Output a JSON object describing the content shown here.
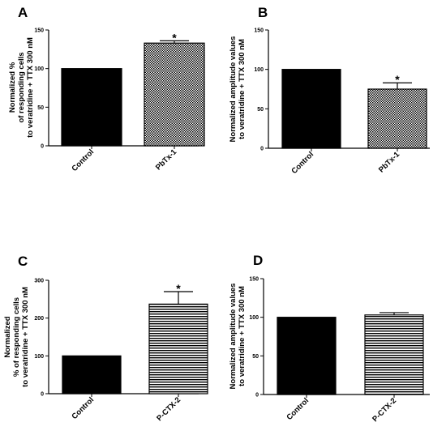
{
  "chart_data": [
    {
      "panel": "A",
      "type": "bar",
      "ylabel": [
        "Normalized %",
        "of responding cells",
        "to veratridine + TTX 300 nM"
      ],
      "ylim": [
        0,
        150
      ],
      "yticks": [
        0,
        50,
        100,
        150
      ],
      "categories": [
        "Control",
        "PbTx-1"
      ],
      "values": [
        100,
        133
      ],
      "errors": [
        0,
        3
      ],
      "fills": [
        "solid",
        "checker"
      ],
      "significance": [
        "",
        "*"
      ]
    },
    {
      "panel": "B",
      "type": "bar",
      "ylabel": [
        "Normalized amplitude values",
        "to veratridine + TTX 300 nM"
      ],
      "ylim": [
        0,
        150
      ],
      "yticks": [
        0,
        50,
        100,
        150
      ],
      "categories": [
        "Control",
        "PbTx-1"
      ],
      "values": [
        100,
        75
      ],
      "errors": [
        0,
        8
      ],
      "fills": [
        "solid",
        "checker"
      ],
      "significance": [
        "",
        "*"
      ]
    },
    {
      "panel": "C",
      "type": "bar",
      "ylabel": [
        "Normalized",
        "% of responding cells",
        "to veratridine + TTX 300 nM"
      ],
      "ylim": [
        0,
        300
      ],
      "yticks": [
        0,
        100,
        200,
        300
      ],
      "categories": [
        "Control",
        "P-CTX-2"
      ],
      "values": [
        100,
        237
      ],
      "errors": [
        0,
        33
      ],
      "fills": [
        "solid",
        "hstripe"
      ],
      "significance": [
        "",
        "*"
      ]
    },
    {
      "panel": "D",
      "type": "bar",
      "ylabel": [
        "Normalized amplitude values",
        "to veratridine + TTX 300 nM"
      ],
      "ylim": [
        0,
        150
      ],
      "yticks": [
        0,
        50,
        100,
        150
      ],
      "categories": [
        "Control",
        "P-CTX-2"
      ],
      "values": [
        100,
        103
      ],
      "errors": [
        0,
        3
      ],
      "fills": [
        "solid",
        "hstripe"
      ],
      "significance": [
        "",
        ""
      ]
    }
  ]
}
